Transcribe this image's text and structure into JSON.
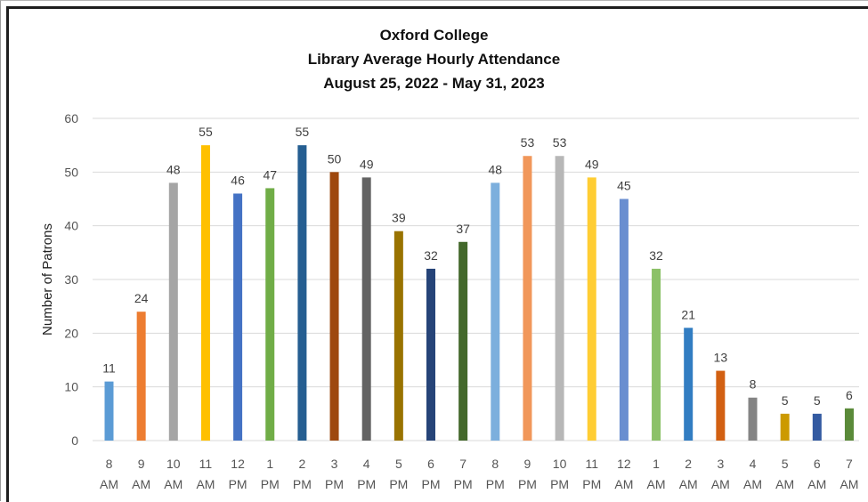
{
  "chart_data": {
    "type": "bar",
    "title": "Oxford College",
    "subtitle_1": "Library Average Hourly Attendance",
    "subtitle_2": "August 25, 2022 - May 31, 2023",
    "xlabel": "",
    "ylabel": "Number of Patrons",
    "ylim": [
      0,
      60
    ],
    "yticks": [
      0,
      10,
      20,
      30,
      40,
      50,
      60
    ],
    "grid": true,
    "legend": "none",
    "categories": [
      [
        "8",
        "AM"
      ],
      [
        "9",
        "AM"
      ],
      [
        "10",
        "AM"
      ],
      [
        "11",
        "AM"
      ],
      [
        "12",
        "PM"
      ],
      [
        "1",
        "PM"
      ],
      [
        "2",
        "PM"
      ],
      [
        "3",
        "PM"
      ],
      [
        "4",
        "PM"
      ],
      [
        "5",
        "PM"
      ],
      [
        "6",
        "PM"
      ],
      [
        "7",
        "PM"
      ],
      [
        "8",
        "PM"
      ],
      [
        "9",
        "PM"
      ],
      [
        "10",
        "PM"
      ],
      [
        "11",
        "PM"
      ],
      [
        "12",
        "AM"
      ],
      [
        "1",
        "AM"
      ],
      [
        "2",
        "AM"
      ],
      [
        "3",
        "AM"
      ],
      [
        "4",
        "AM"
      ],
      [
        "5",
        "AM"
      ],
      [
        "6",
        "AM"
      ],
      [
        "7",
        "AM"
      ]
    ],
    "values": [
      11,
      24,
      48,
      55,
      46,
      47,
      55,
      50,
      49,
      39,
      32,
      37,
      48,
      53,
      53,
      49,
      45,
      32,
      21,
      13,
      8,
      5,
      5,
      6
    ],
    "data_labels": [
      "11",
      "24",
      "48",
      "55",
      "46",
      "47",
      "55",
      "50",
      "49",
      "39",
      "32",
      "37",
      "48",
      "53",
      "53",
      "49",
      "45",
      "32",
      "21",
      "13",
      "8",
      "5",
      "5",
      "6"
    ],
    "colors": [
      "#5b9bd5",
      "#ed7d31",
      "#a5a5a5",
      "#ffc000",
      "#4472c4",
      "#70ad47",
      "#255e91",
      "#9e480e",
      "#636363",
      "#997300",
      "#264478",
      "#43682b",
      "#7cafdd",
      "#f1975a",
      "#b7b7b7",
      "#ffcd33",
      "#698ed0",
      "#8cc168",
      "#327dc2",
      "#d26012",
      "#848484",
      "#cc9a00",
      "#335aa1",
      "#5a8a39"
    ]
  }
}
